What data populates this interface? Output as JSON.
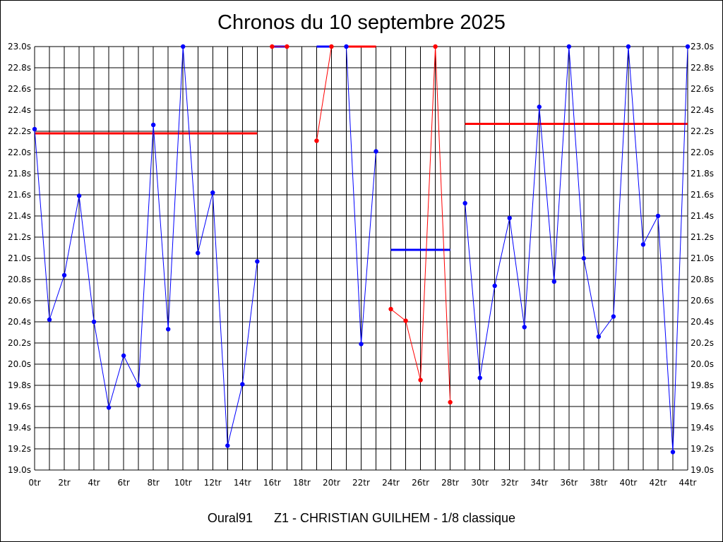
{
  "page": {
    "title": "Chronos du 10 septembre 2025",
    "footer": {
      "track": "Oural91",
      "race": "Z1 - CHRISTIAN GUILHEM - 1/8 classique"
    }
  },
  "chart_data": {
    "type": "line",
    "title": "Chronos du 10 septembre 2025",
    "xlabel": "",
    "ylabel": "",
    "xlim": [
      0,
      44
    ],
    "ylim": [
      19.0,
      23.0
    ],
    "grid": true,
    "x_ticks": [
      "0tr",
      "2tr",
      "4tr",
      "6tr",
      "8tr",
      "10tr",
      "12tr",
      "14tr",
      "16tr",
      "18tr",
      "20tr",
      "22tr",
      "24tr",
      "26tr",
      "28tr",
      "30tr",
      "32tr",
      "34tr",
      "36tr",
      "38tr",
      "40tr",
      "42tr",
      "44tr"
    ],
    "y_ticks": [
      "19.0s",
      "19.2s",
      "19.4s",
      "19.6s",
      "19.8s",
      "20.0s",
      "20.2s",
      "20.4s",
      "20.6s",
      "20.8s",
      "21.0s",
      "21.2s",
      "21.4s",
      "21.6s",
      "21.8s",
      "22.0s",
      "22.2s",
      "22.4s",
      "22.6s",
      "22.8s",
      "23.0s"
    ],
    "series": [
      {
        "color": "#0000ff",
        "x": [
          0,
          1,
          2,
          3,
          4,
          5,
          6,
          7,
          8,
          9,
          10,
          11,
          12,
          13,
          14,
          15
        ],
        "values": [
          22.22,
          20.42,
          20.84,
          21.59,
          20.4,
          19.59,
          20.08,
          19.8,
          22.26,
          20.33,
          23.0,
          21.05,
          21.62,
          19.23,
          19.81,
          20.97
        ]
      },
      {
        "color": "#ff0000",
        "x": [
          16,
          17
        ],
        "values": [
          23.0,
          23.0
        ]
      },
      {
        "color": "#ff0000",
        "x": [
          19,
          20
        ],
        "values": [
          22.11,
          23.0
        ]
      },
      {
        "color": "#0000ff",
        "x": [
          21,
          22,
          23
        ],
        "values": [
          23.0,
          20.19,
          22.01
        ]
      },
      {
        "color": "#ff0000",
        "x": [
          24,
          25,
          26,
          27,
          28
        ],
        "values": [
          20.52,
          20.41,
          19.85,
          23.0,
          19.64
        ]
      },
      {
        "color": "#0000ff",
        "x": [
          29,
          30,
          31,
          32,
          33,
          34,
          35,
          36,
          37,
          38,
          39,
          40,
          41,
          42,
          43,
          44
        ],
        "values": [
          21.52,
          19.87,
          20.74,
          21.38,
          20.35,
          22.43,
          20.78,
          23.0,
          21.0,
          20.26,
          20.45,
          23.0,
          21.13,
          21.4,
          19.17,
          23.0
        ]
      }
    ],
    "averages": [
      {
        "color": "#ff0000",
        "x": [
          0,
          15
        ],
        "value": 22.18
      },
      {
        "color": "#0000ff",
        "x": [
          16,
          17
        ],
        "value": 23.0
      },
      {
        "color": "#0000ff",
        "x": [
          19,
          20
        ],
        "value": 23.0
      },
      {
        "color": "#ff0000",
        "x": [
          21,
          23
        ],
        "value": 23.0
      },
      {
        "color": "#0000ff",
        "x": [
          24,
          28
        ],
        "value": 21.08
      },
      {
        "color": "#ff0000",
        "x": [
          29,
          44
        ],
        "value": 22.27
      }
    ]
  }
}
